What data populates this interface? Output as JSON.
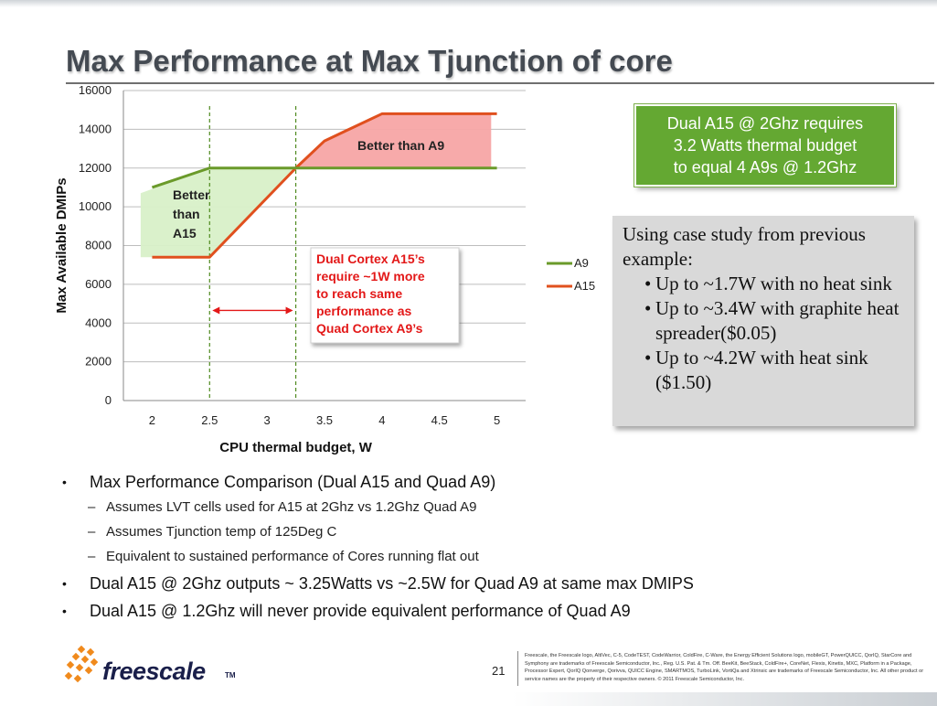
{
  "slide": {
    "title": "Max Performance at Max Tjunction of core",
    "page_number": "21"
  },
  "chart_data": {
    "type": "line",
    "x": [
      2,
      2.5,
      3,
      3.5,
      4,
      4.5,
      5
    ],
    "xlabel": "CPU thermal budget, W",
    "ylabel": "Max Available DMIPs",
    "xlim": [
      1.75,
      5.25
    ],
    "ylim": [
      0,
      16000
    ],
    "x_ticks": [
      "2",
      "2.5",
      "3",
      "3.5",
      "4",
      "4.5",
      "5"
    ],
    "y_ticks": [
      "0",
      "2000",
      "4000",
      "6000",
      "8000",
      "10000",
      "12000",
      "14000",
      "16000"
    ],
    "grid": "horizontal",
    "legend_position": "right",
    "series": [
      {
        "name": "A9",
        "color": "#6a9a2a",
        "points": [
          [
            2,
            11000
          ],
          [
            2.5,
            12000
          ],
          [
            3,
            12000
          ],
          [
            3.5,
            12000
          ],
          [
            4,
            12000
          ],
          [
            4.5,
            12000
          ],
          [
            5,
            12000
          ]
        ]
      },
      {
        "name": "A15",
        "color": "#e0501e",
        "points": [
          [
            2,
            7400
          ],
          [
            2.5,
            7400
          ],
          [
            3.25,
            12000
          ],
          [
            3.5,
            13400
          ],
          [
            4,
            14800
          ],
          [
            4.5,
            14800
          ],
          [
            5,
            14800
          ]
        ]
      }
    ],
    "annotations": {
      "better_than_a15": "Better than A15",
      "better_than_a15_lines": [
        "Better",
        "than",
        "A15"
      ],
      "better_than_a9": "Better than A9",
      "gap_callout_lines": [
        "Dual Cortex A15’s",
        "require ~1W more",
        "to reach same",
        "performance as",
        "Quad Cortex A9’s"
      ],
      "vertical_markers_x": [
        2.5,
        3.25
      ]
    }
  },
  "green_box": {
    "lines": [
      "Dual A15 @ 2Ghz requires",
      "3.2 Watts thermal budget",
      "to equal 4 A9s @ 1.2Ghz"
    ]
  },
  "note_box": {
    "intro": "Using case study from previous example:",
    "items": [
      "Up to ~1.7W with no heat sink",
      "Up to ~3.4W with graphite heat spreader($0.05)",
      "Up to ~4.2W with heat sink ($1.50)"
    ]
  },
  "bullets": {
    "b1": "Max Performance Comparison (Dual A15 and Quad A9)",
    "b1_subs": [
      "Assumes LVT cells used for A15 at 2Ghz vs 1.2Ghz Quad A9",
      "Assumes Tjunction temp of 125Deg C",
      "Equivalent to sustained performance of Cores running flat out"
    ],
    "b2": "Dual A15 @ 2Ghz outputs ~ 3.25Watts vs ~2.5W for Quad A9 at same max DMIPS",
    "b3": "Dual A15 @ 1.2Ghz will never provide equivalent performance of Quad A9"
  },
  "footer": {
    "logo_text": "freescale",
    "logo_tm": "TM",
    "legal": "Freescale, the Freescale logo, AltiVec, C-5, CodeTEST, CodeWarrior, ColdFire, C-Ware, the Energy Efficient Solutions logo, mobileGT, PowerQUICC, QorIQ, StarCore and Symphony are trademarks of Freescale Semiconductor, Inc., Reg. U.S. Pat. & Tm. Off. BeeKit, BeeStack, ColdFire+, CoreNet, Flexis, Kinetis, MXC, Platform in a Package, Processor Expert, QorIQ Qonverge, Qorivva, QUICC Engine, SMARTMOS, TurboLink, VortiQa and Xtrinsic are trademarks of Freescale Semiconductor, Inc. All other product or service names are the property of their respective owners. © 2011 Freescale Semiconductor, Inc."
  },
  "colors": {
    "title": "#444a52",
    "green_box": "#64a832",
    "note_box": "#d9d9d9",
    "a9_line": "#6a9a2a",
    "a15_line": "#e0501e",
    "green_region": "#d8f0c8",
    "red_region": "#f7a5a5",
    "callout_text": "#e31818"
  }
}
